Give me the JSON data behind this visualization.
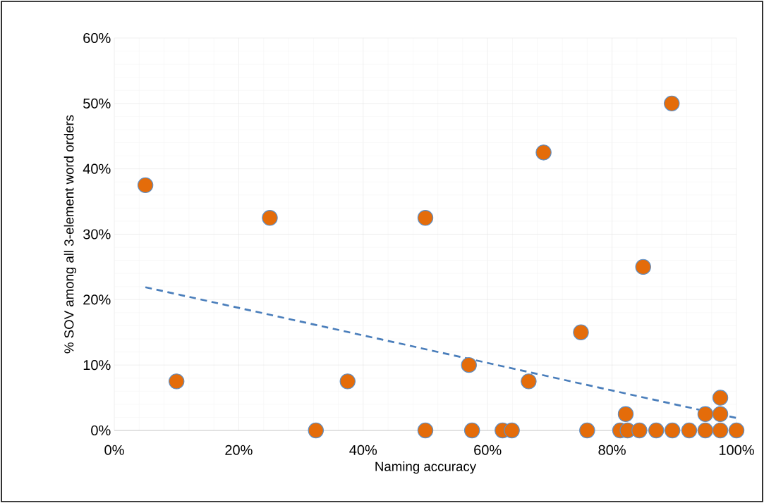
{
  "chart_data": {
    "type": "scatter",
    "xlabel": "Naming accuracy",
    "ylabel": "% SOV among all 3-element word orders",
    "xlim": [
      0,
      100
    ],
    "ylim": [
      0,
      60
    ],
    "xticks": [
      {
        "value": 0,
        "label": "0%"
      },
      {
        "value": 20,
        "label": "20%"
      },
      {
        "value": 40,
        "label": "40%"
      },
      {
        "value": 60,
        "label": "60%"
      },
      {
        "value": 80,
        "label": "80%"
      },
      {
        "value": 100,
        "label": "100%"
      }
    ],
    "yticks": [
      {
        "value": 0,
        "label": "0%"
      },
      {
        "value": 10,
        "label": "10%"
      },
      {
        "value": 20,
        "label": "20%"
      },
      {
        "value": 30,
        "label": "30%"
      },
      {
        "value": 40,
        "label": "40%"
      },
      {
        "value": 50,
        "label": "50%"
      },
      {
        "value": 60,
        "label": "60%"
      }
    ],
    "grid": true,
    "series": [
      {
        "type": "scatter",
        "marker": "circle",
        "color": "#e46c0a",
        "x": [
          5,
          10,
          25,
          32.4,
          37.5,
          50,
          50,
          57,
          57.5,
          62.4,
          63.9,
          66.6,
          69,
          75,
          76,
          81.3,
          82.2,
          82.5,
          84.4,
          85,
          87.1,
          89.6,
          89.7,
          92.4,
          95,
          95,
          97.4,
          97.4,
          97.4,
          100
        ],
        "values": [
          37.5,
          7.5,
          32.5,
          0,
          7.5,
          32.5,
          0,
          10,
          0,
          0,
          0,
          7.5,
          42.5,
          15,
          0,
          0,
          2.5,
          0,
          0,
          25,
          0,
          50,
          0,
          0,
          0,
          2.5,
          0,
          2.5,
          5,
          0
        ]
      },
      {
        "type": "line",
        "marker": "none",
        "line_style": "dashed",
        "color": "#4a7ebb",
        "x": [
          5,
          100
        ],
        "values": [
          21.9,
          1.9
        ]
      }
    ]
  }
}
